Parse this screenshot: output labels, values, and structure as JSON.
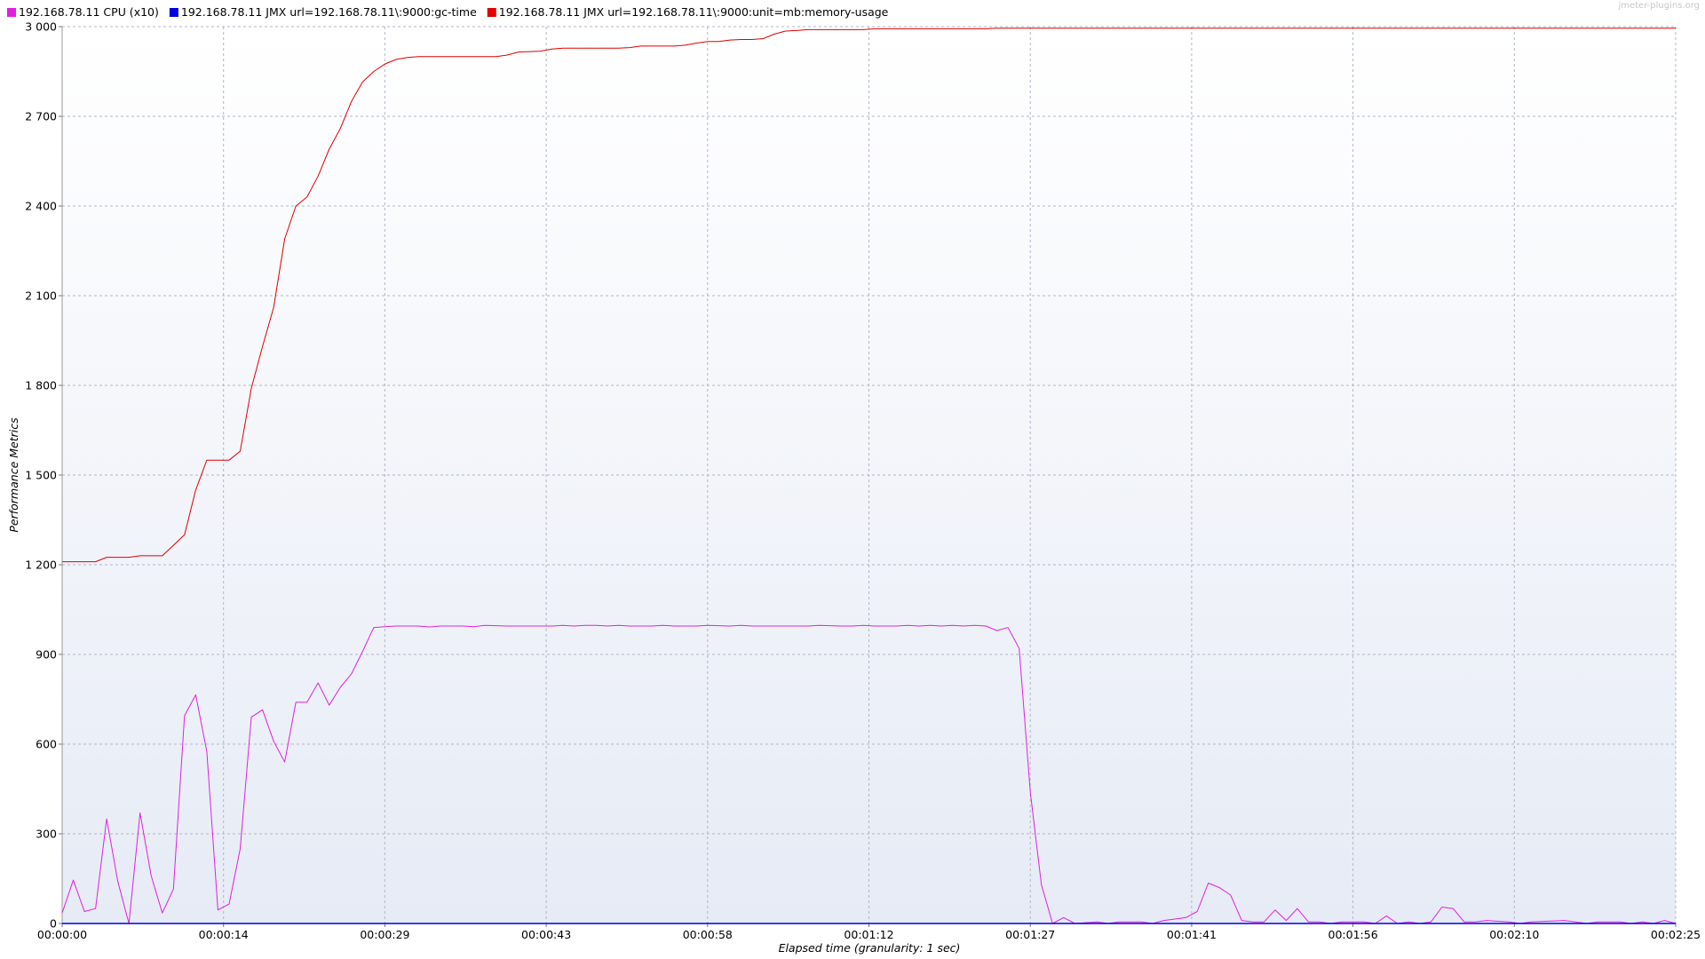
{
  "watermark": "jmeter-plugins.org",
  "legend": [
    {
      "label": "192.168.78.11 CPU (x10)",
      "color": "#e020e0"
    },
    {
      "label": "192.168.78.11 JMX url=192.168.78.11\\:9000:gc-time",
      "color": "#0000e0"
    },
    {
      "label": "192.168.78.11 JMX url=192.168.78.11\\:9000:unit=mb:memory-usage",
      "color": "#e00000"
    }
  ],
  "chart_data": {
    "type": "line",
    "title": "",
    "xlabel": "Elapsed time (granularity: 1 sec)",
    "ylabel": "Performance Metrics",
    "xlim": [
      0,
      145
    ],
    "ylim": [
      0,
      3000
    ],
    "grid": true,
    "legend_position": "top-left",
    "x_ticks": [
      0,
      14.5,
      29,
      43.5,
      58,
      72.5,
      87,
      101.5,
      116,
      130.5,
      145
    ],
    "x_tick_labels": [
      "00:00:00",
      "00:00:14",
      "00:00:29",
      "00:00:43",
      "00:00:58",
      "00:01:12",
      "00:01:27",
      "00:01:41",
      "00:01:56",
      "00:02:10",
      "00:02:25"
    ],
    "y_ticks": [
      0,
      300,
      600,
      900,
      1200,
      1500,
      1800,
      2100,
      2400,
      2700,
      3000
    ],
    "y_tick_labels": [
      "0",
      "300",
      "600",
      "900",
      "1 200",
      "1 500",
      "1 800",
      "2 100",
      "2 400",
      "2 700",
      "3 000"
    ],
    "series": [
      {
        "name": "192.168.78.11 CPU (x10)",
        "color": "#e020e0",
        "points": [
          [
            0,
            35
          ],
          [
            1,
            145
          ],
          [
            2,
            40
          ],
          [
            3,
            50
          ],
          [
            4,
            350
          ],
          [
            5,
            140
          ],
          [
            6,
            0
          ],
          [
            7,
            370
          ],
          [
            8,
            160
          ],
          [
            9,
            35
          ],
          [
            10,
            115
          ],
          [
            11,
            695
          ],
          [
            12,
            765
          ],
          [
            13,
            575
          ],
          [
            14,
            45
          ],
          [
            15,
            65
          ],
          [
            16,
            250
          ],
          [
            17,
            690
          ],
          [
            18,
            715
          ],
          [
            19,
            610
          ],
          [
            20,
            540
          ],
          [
            21,
            740
          ],
          [
            22,
            740
          ],
          [
            23,
            805
          ],
          [
            24,
            730
          ],
          [
            25,
            790
          ],
          [
            26,
            835
          ],
          [
            27,
            910
          ],
          [
            28,
            990
          ],
          [
            29,
            993
          ],
          [
            30,
            995
          ],
          [
            32,
            995
          ],
          [
            33,
            992
          ],
          [
            34,
            995
          ],
          [
            36,
            995
          ],
          [
            37,
            993
          ],
          [
            38,
            997
          ],
          [
            40,
            995
          ],
          [
            44,
            995
          ],
          [
            45,
            997
          ],
          [
            46,
            995
          ],
          [
            47,
            997
          ],
          [
            48,
            997
          ],
          [
            49,
            995
          ],
          [
            50,
            997
          ],
          [
            51,
            995
          ],
          [
            53,
            995
          ],
          [
            54,
            997
          ],
          [
            55,
            995
          ],
          [
            57,
            995
          ],
          [
            58,
            997
          ],
          [
            60,
            995
          ],
          [
            61,
            997
          ],
          [
            62,
            995
          ],
          [
            67,
            995
          ],
          [
            68,
            997
          ],
          [
            70,
            995
          ],
          [
            71,
            995
          ],
          [
            72,
            997
          ],
          [
            73,
            995
          ],
          [
            75,
            995
          ],
          [
            76,
            997
          ],
          [
            77,
            995
          ],
          [
            78,
            997
          ],
          [
            79,
            995
          ],
          [
            80,
            997
          ],
          [
            81,
            995
          ],
          [
            82,
            997
          ],
          [
            83,
            995
          ],
          [
            84,
            980
          ],
          [
            85,
            990
          ],
          [
            86,
            920
          ],
          [
            87,
            440
          ],
          [
            88,
            130
          ],
          [
            89,
            0
          ],
          [
            90,
            20
          ],
          [
            91,
            0
          ],
          [
            93,
            5
          ],
          [
            94,
            0
          ],
          [
            95,
            5
          ],
          [
            97,
            5
          ],
          [
            98,
            0
          ],
          [
            99,
            10
          ],
          [
            100,
            15
          ],
          [
            101,
            20
          ],
          [
            102,
            40
          ],
          [
            103,
            135
          ],
          [
            104,
            120
          ],
          [
            105,
            95
          ],
          [
            106,
            10
          ],
          [
            107,
            5
          ],
          [
            108,
            5
          ],
          [
            109,
            45
          ],
          [
            110,
            10
          ],
          [
            111,
            50
          ],
          [
            112,
            5
          ],
          [
            113,
            5
          ],
          [
            114,
            0
          ],
          [
            115,
            5
          ],
          [
            117,
            5
          ],
          [
            118,
            0
          ],
          [
            119,
            25
          ],
          [
            120,
            0
          ],
          [
            121,
            5
          ],
          [
            122,
            0
          ],
          [
            123,
            5
          ],
          [
            124,
            55
          ],
          [
            125,
            50
          ],
          [
            126,
            5
          ],
          [
            127,
            5
          ],
          [
            128,
            10
          ],
          [
            130,
            5
          ],
          [
            131,
            0
          ],
          [
            132,
            5
          ],
          [
            135,
            10
          ],
          [
            136,
            5
          ],
          [
            137,
            0
          ],
          [
            138,
            5
          ],
          [
            140,
            5
          ],
          [
            141,
            0
          ],
          [
            142,
            5
          ],
          [
            143,
            0
          ],
          [
            144,
            10
          ],
          [
            145,
            0
          ]
        ]
      },
      {
        "name": "192.168.78.11 JMX url=192.168.78.11\\:9000:gc-time",
        "color": "#0000e0",
        "points": [
          [
            0,
            0
          ],
          [
            145,
            0
          ]
        ]
      },
      {
        "name": "192.168.78.11 JMX url=192.168.78.11\\:9000:unit=mb:memory-usage",
        "color": "#e00000",
        "points": [
          [
            0,
            1210
          ],
          [
            1,
            1210
          ],
          [
            2,
            1210
          ],
          [
            3,
            1210
          ],
          [
            4,
            1225
          ],
          [
            5,
            1225
          ],
          [
            6,
            1225
          ],
          [
            7,
            1230
          ],
          [
            8,
            1230
          ],
          [
            9,
            1230
          ],
          [
            10,
            1265
          ],
          [
            11,
            1300
          ],
          [
            12,
            1450
          ],
          [
            13,
            1550
          ],
          [
            14,
            1550
          ],
          [
            15,
            1550
          ],
          [
            16,
            1580
          ],
          [
            17,
            1790
          ],
          [
            18,
            1930
          ],
          [
            19,
            2060
          ],
          [
            20,
            2290
          ],
          [
            21,
            2400
          ],
          [
            22,
            2430
          ],
          [
            23,
            2500
          ],
          [
            24,
            2590
          ],
          [
            25,
            2660
          ],
          [
            26,
            2750
          ],
          [
            27,
            2815
          ],
          [
            28,
            2850
          ],
          [
            29,
            2875
          ],
          [
            30,
            2890
          ],
          [
            31,
            2897
          ],
          [
            32,
            2900
          ],
          [
            33,
            2900
          ],
          [
            39,
            2900
          ],
          [
            40,
            2905
          ],
          [
            41,
            2915
          ],
          [
            43,
            2918
          ],
          [
            44,
            2925
          ],
          [
            45,
            2928
          ],
          [
            50,
            2928
          ],
          [
            51,
            2930
          ],
          [
            52,
            2935
          ],
          [
            55,
            2935
          ],
          [
            56,
            2938
          ],
          [
            57,
            2945
          ],
          [
            58,
            2950
          ],
          [
            59,
            2950
          ],
          [
            60,
            2955
          ],
          [
            61,
            2957
          ],
          [
            62,
            2957
          ],
          [
            63,
            2960
          ],
          [
            64,
            2975
          ],
          [
            65,
            2985
          ],
          [
            66,
            2987
          ],
          [
            67,
            2990
          ],
          [
            72,
            2990
          ],
          [
            73,
            2993
          ],
          [
            77,
            2993
          ],
          [
            83,
            2993
          ],
          [
            84,
            2995
          ],
          [
            145,
            2995
          ]
        ]
      }
    ]
  }
}
